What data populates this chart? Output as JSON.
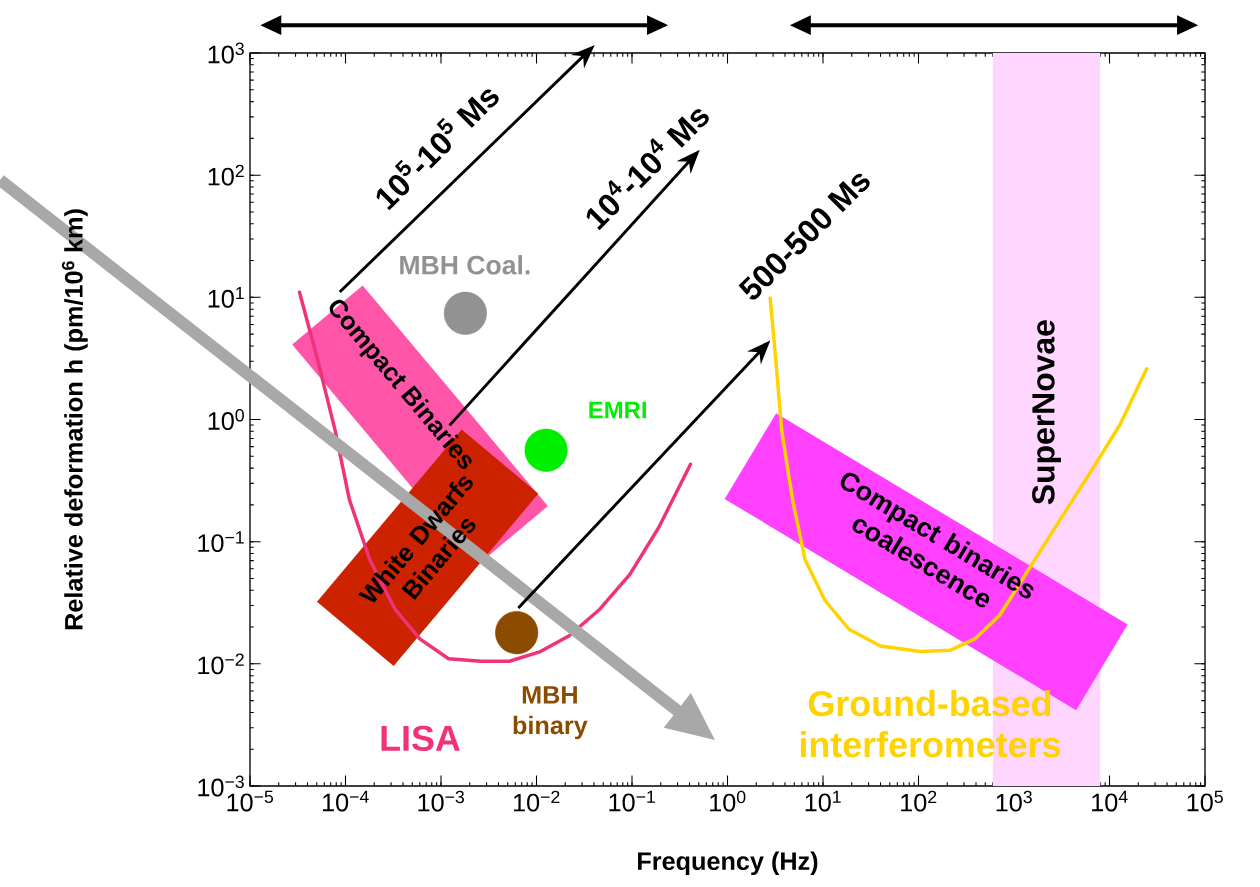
{
  "chart_data": {
    "type": "line",
    "xlabel": "Frequency (Hz)",
    "ylabel": "Relative deformation h (pm/10$^{6}$ km)",
    "log": "xy",
    "xlim": [
      1e-05,
      100000
    ],
    "ylim": [
      0.001,
      1000
    ],
    "xticks": [
      {
        "value": 1e-05,
        "label": "10$^{−5}$"
      },
      {
        "value": 0.0001,
        "label": "10$^{−4}$"
      },
      {
        "value": 0.001,
        "label": "10$^{−3}$"
      },
      {
        "value": 0.01,
        "label": "10$^{−2}$"
      },
      {
        "value": 0.1,
        "label": "10$^{−1}$"
      },
      {
        "value": 1,
        "label": "10$^{0}$"
      },
      {
        "value": 10,
        "label": "10$^{1}$"
      },
      {
        "value": 100,
        "label": "10$^{2}$"
      },
      {
        "value": 1000,
        "label": "10$^{3}$"
      },
      {
        "value": 10000,
        "label": "10$^{4}$"
      },
      {
        "value": 100000,
        "label": "10$^{5}$"
      }
    ],
    "yticks": [
      {
        "value": 0.001,
        "label": "10$^{−3}$"
      },
      {
        "value": 0.01,
        "label": "10$^{−2}$"
      },
      {
        "value": 0.1,
        "label": "10$^{−1}$"
      },
      {
        "value": 1,
        "label": "10$^{0}$"
      },
      {
        "value": 10,
        "label": "10$^{1}$"
      },
      {
        "value": 100,
        "label": "10$^{2}$"
      },
      {
        "value": 1000,
        "label": "10$^{3}$"
      }
    ],
    "series": [
      {
        "name": "LISA",
        "color": "#f0327a",
        "x": [
          3.3e-05,
          5.1e-05,
          7.8e-05,
          0.00011,
          0.00018,
          0.00033,
          0.0006,
          0.0012,
          0.0026,
          0.0052,
          0.011,
          0.022,
          0.046,
          0.095,
          0.19,
          0.41
        ],
        "values": [
          11,
          3.1,
          0.81,
          0.22,
          0.071,
          0.028,
          0.016,
          0.011,
          0.0105,
          0.0105,
          0.0126,
          0.017,
          0.028,
          0.054,
          0.13,
          0.43
        ]
      },
      {
        "name": "Ground-based interferometers",
        "color": "#ffd200",
        "x": [
          2.8,
          3.2,
          3.7,
          4.8,
          6.5,
          10.5,
          19,
          40,
          105,
          214,
          389,
          708,
          1480,
          3020,
          6310,
          12900,
          24500
        ],
        "values": [
          9.9,
          3.1,
          0.81,
          0.22,
          0.071,
          0.033,
          0.019,
          0.014,
          0.0126,
          0.0129,
          0.016,
          0.025,
          0.062,
          0.15,
          0.37,
          0.91,
          2.6
        ]
      },
      {
        "type": "scatter",
        "name": "MBH Coal.",
        "color": "#929292",
        "marker": "circle",
        "x": [
          0.0018
        ],
        "values": [
          7.4
        ]
      },
      {
        "type": "scatter",
        "name": "EMRI",
        "color": "#00ee00",
        "marker": "circle",
        "x": [
          0.0126
        ],
        "values": [
          0.56
        ]
      },
      {
        "type": "scatter",
        "name": "MBH binary",
        "color": "#8b4c00",
        "marker": "circle",
        "x": [
          0.0062
        ],
        "values": [
          0.018
        ]
      }
    ],
    "bands": [
      {
        "axis": "x",
        "from": 600,
        "to": 8000,
        "label": "SuperNovae",
        "color": "#ffd6ff"
      }
    ],
    "annotations": [
      "Compact Binaries",
      "White Dwarfs Binaries",
      "Compact binaries coalescence",
      "10$^{5}$-10$^{5}$ Ms",
      "10$^{4}$-10$^{4}$ Ms",
      "500-500 Ms"
    ]
  }
}
